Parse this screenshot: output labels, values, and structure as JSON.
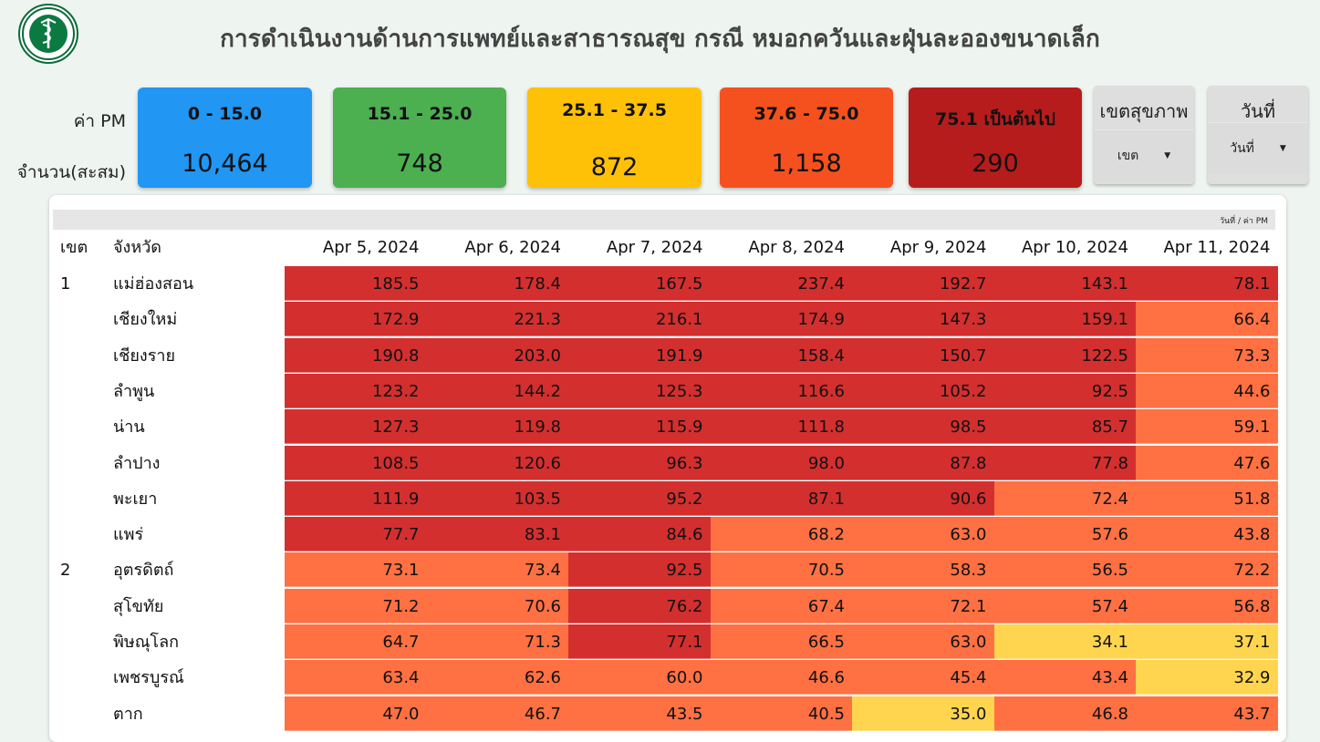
{
  "header": {
    "title": "การดำเนินงานด้านการแพทย์และสาธารณสุข กรณี หมอกควันและฝุ่นละอองขนาดเล็ก",
    "logo_icon": "ministry-of-public-health-seal"
  },
  "labels": {
    "pm_value": "ค่า PM",
    "count_cumulative": "จำนวน(สะสม)"
  },
  "pm_cards": [
    {
      "range": "0 - 15.0",
      "count": "10,464",
      "color": "#2196f3"
    },
    {
      "range": "15.1 - 25.0",
      "count": "748",
      "color": "#4caf50"
    },
    {
      "range": "25.1 - 37.5",
      "count": "872",
      "color": "#ffc107"
    },
    {
      "range": "37.6 - 75.0",
      "count": "1,158",
      "color": "#f4511e"
    },
    {
      "range": "75.1 เป็นต้นไป",
      "count": "290",
      "color": "#b71c1c"
    }
  ],
  "filters": {
    "region": {
      "label": "เขตสุขภาพ",
      "selected": "เขต"
    },
    "date": {
      "label": "วันที่",
      "selected": "วันที่"
    }
  },
  "table": {
    "axis_note": "วันที่ / ค่า PM",
    "col_zone": "เขต",
    "col_province": "จังหวัด",
    "dates": [
      "Apr 5, 2024",
      "Apr 6, 2024",
      "Apr 7, 2024",
      "Apr 8, 2024",
      "Apr 9, 2024",
      "Apr 10, 2024",
      "Apr 11, 2024"
    ],
    "rows": [
      {
        "zone": "1",
        "province": "แม่ฮ่องสอน",
        "values": [
          "185.5",
          "178.4",
          "167.5",
          "237.4",
          "192.7",
          "143.1",
          "78.1"
        ]
      },
      {
        "zone": "",
        "province": "เชียงใหม่",
        "values": [
          "172.9",
          "221.3",
          "216.1",
          "174.9",
          "147.3",
          "159.1",
          "66.4"
        ]
      },
      {
        "zone": "",
        "province": "เชียงราย",
        "values": [
          "190.8",
          "203.0",
          "191.9",
          "158.4",
          "150.7",
          "122.5",
          "73.3"
        ]
      },
      {
        "zone": "",
        "province": "ลำพูน",
        "values": [
          "123.2",
          "144.2",
          "125.3",
          "116.6",
          "105.2",
          "92.5",
          "44.6"
        ]
      },
      {
        "zone": "",
        "province": "น่าน",
        "values": [
          "127.3",
          "119.8",
          "115.9",
          "111.8",
          "98.5",
          "85.7",
          "59.1"
        ]
      },
      {
        "zone": "",
        "province": "ลำปาง",
        "values": [
          "108.5",
          "120.6",
          "96.3",
          "98.0",
          "87.8",
          "77.8",
          "47.6"
        ]
      },
      {
        "zone": "",
        "province": "พะเยา",
        "values": [
          "111.9",
          "103.5",
          "95.2",
          "87.1",
          "90.6",
          "72.4",
          "51.8"
        ]
      },
      {
        "zone": "",
        "province": "แพร่",
        "values": [
          "77.7",
          "83.1",
          "84.6",
          "68.2",
          "63.0",
          "57.6",
          "43.8"
        ]
      },
      {
        "zone": "2",
        "province": "อุตรดิตถ์",
        "values": [
          "73.1",
          "73.4",
          "92.5",
          "70.5",
          "58.3",
          "56.5",
          "72.2"
        ]
      },
      {
        "zone": "",
        "province": "สุโขทัย",
        "values": [
          "71.2",
          "70.6",
          "76.2",
          "67.4",
          "72.1",
          "57.4",
          "56.8"
        ]
      },
      {
        "zone": "",
        "province": "พิษณุโลก",
        "values": [
          "64.7",
          "71.3",
          "77.1",
          "66.5",
          "63.0",
          "34.1",
          "37.1"
        ]
      },
      {
        "zone": "",
        "province": "เพชรบูรณ์",
        "values": [
          "63.4",
          "62.6",
          "60.0",
          "46.6",
          "45.4",
          "43.4",
          "32.9"
        ]
      },
      {
        "zone": "",
        "province": "ตาก",
        "values": [
          "47.0",
          "46.7",
          "43.5",
          "40.5",
          "35.0",
          "46.8",
          "43.7"
        ]
      }
    ]
  },
  "colors": {
    "level_very_high": "#d32f2f",
    "level_high": "#ff7043",
    "level_moderate": "#ffd54f"
  }
}
